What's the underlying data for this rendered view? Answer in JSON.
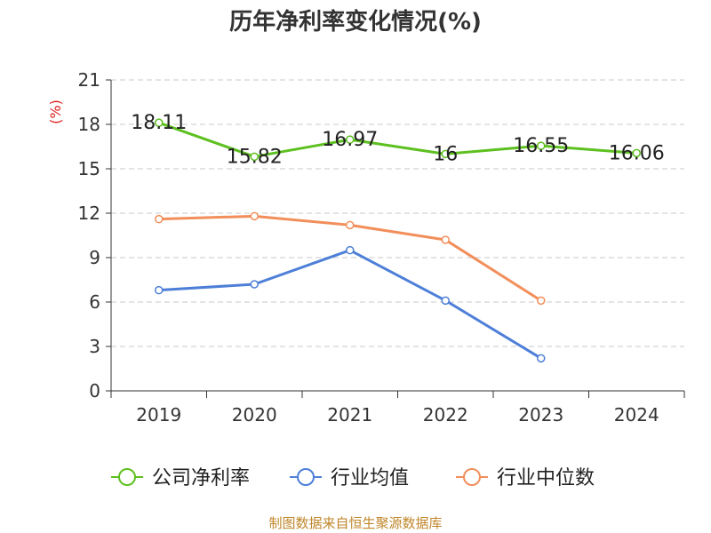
{
  "chart_data": {
    "type": "line",
    "title": "历年净利率变化情况(%)",
    "ylabel": "(%)",
    "xlabel": "",
    "categories": [
      "2019",
      "2020",
      "2021",
      "2022",
      "2023",
      "2024"
    ],
    "ylim": [
      0,
      21
    ],
    "yticks": [
      "0",
      "3",
      "6",
      "9",
      "12",
      "15",
      "18",
      "21"
    ],
    "grid": true,
    "legend_position": "bottom",
    "series": [
      {
        "name": "公司净利率",
        "color": "#5dc020",
        "values": [
          18.11,
          15.82,
          16.97,
          16,
          16.55,
          16.06
        ],
        "labels": [
          "18.11",
          "15.82",
          "16.97",
          "16",
          "16.55",
          "16.06"
        ]
      },
      {
        "name": "行业均值",
        "color": "#4e7fd8",
        "values": [
          6.8,
          7.2,
          9.5,
          6.1,
          2.2,
          null
        ]
      },
      {
        "name": "行业中位数",
        "color": "#f28e5a",
        "values": [
          11.6,
          11.8,
          11.2,
          10.2,
          6.1,
          null
        ]
      }
    ]
  },
  "footer": {
    "source": "制图数据来自恒生聚源数据库"
  }
}
